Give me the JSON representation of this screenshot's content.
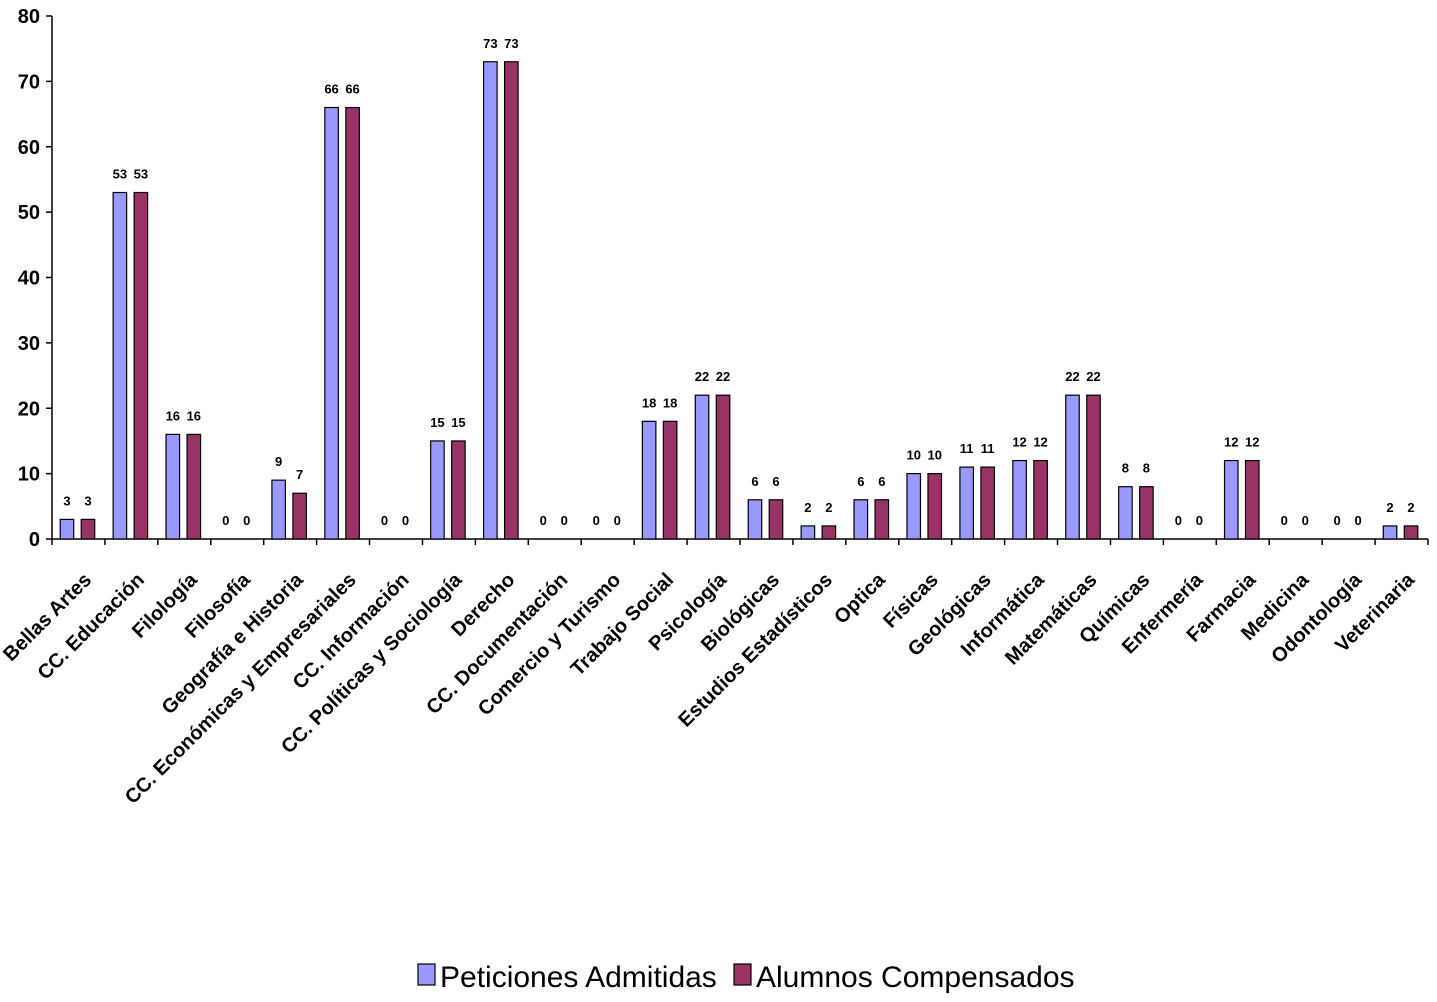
{
  "chart_data": {
    "type": "bar",
    "categories": [
      "Bellas Artes",
      "CC. Educación",
      "Filología",
      "Filosofía",
      "Geografía e Historia",
      "CC. Económicas y Empresariales",
      "CC. Información",
      "CC. Políticas y Sociología",
      "Derecho",
      "CC. Documentación",
      "Comercio y Turismo",
      "Trabajo Social",
      "Psicología",
      "Biológicas",
      "Estudios Estadísticos",
      "Optica",
      "Físicas",
      "Geológicas",
      "Informática",
      "Matemáticas",
      "Químicas",
      "Enfermería",
      "Farmacia",
      "Medicina",
      "Odontología",
      "Veterinaria"
    ],
    "series": [
      {
        "name": "Peticiones Admitidas",
        "color": "#9999ff",
        "values": [
          3,
          53,
          16,
          0,
          9,
          66,
          0,
          15,
          73,
          0,
          0,
          18,
          22,
          6,
          2,
          6,
          10,
          11,
          12,
          22,
          8,
          0,
          12,
          0,
          0,
          2
        ]
      },
      {
        "name": "Alumnos Compensados",
        "color": "#993366",
        "values": [
          3,
          53,
          16,
          0,
          7,
          66,
          0,
          15,
          73,
          0,
          0,
          18,
          22,
          6,
          2,
          6,
          10,
          11,
          12,
          22,
          8,
          0,
          12,
          0,
          0,
          2
        ]
      }
    ],
    "yticks": [
      0,
      10,
      20,
      30,
      40,
      50,
      60,
      70,
      80
    ],
    "ylim": [
      0,
      80
    ],
    "grid": false,
    "legend_position": "bottom"
  }
}
